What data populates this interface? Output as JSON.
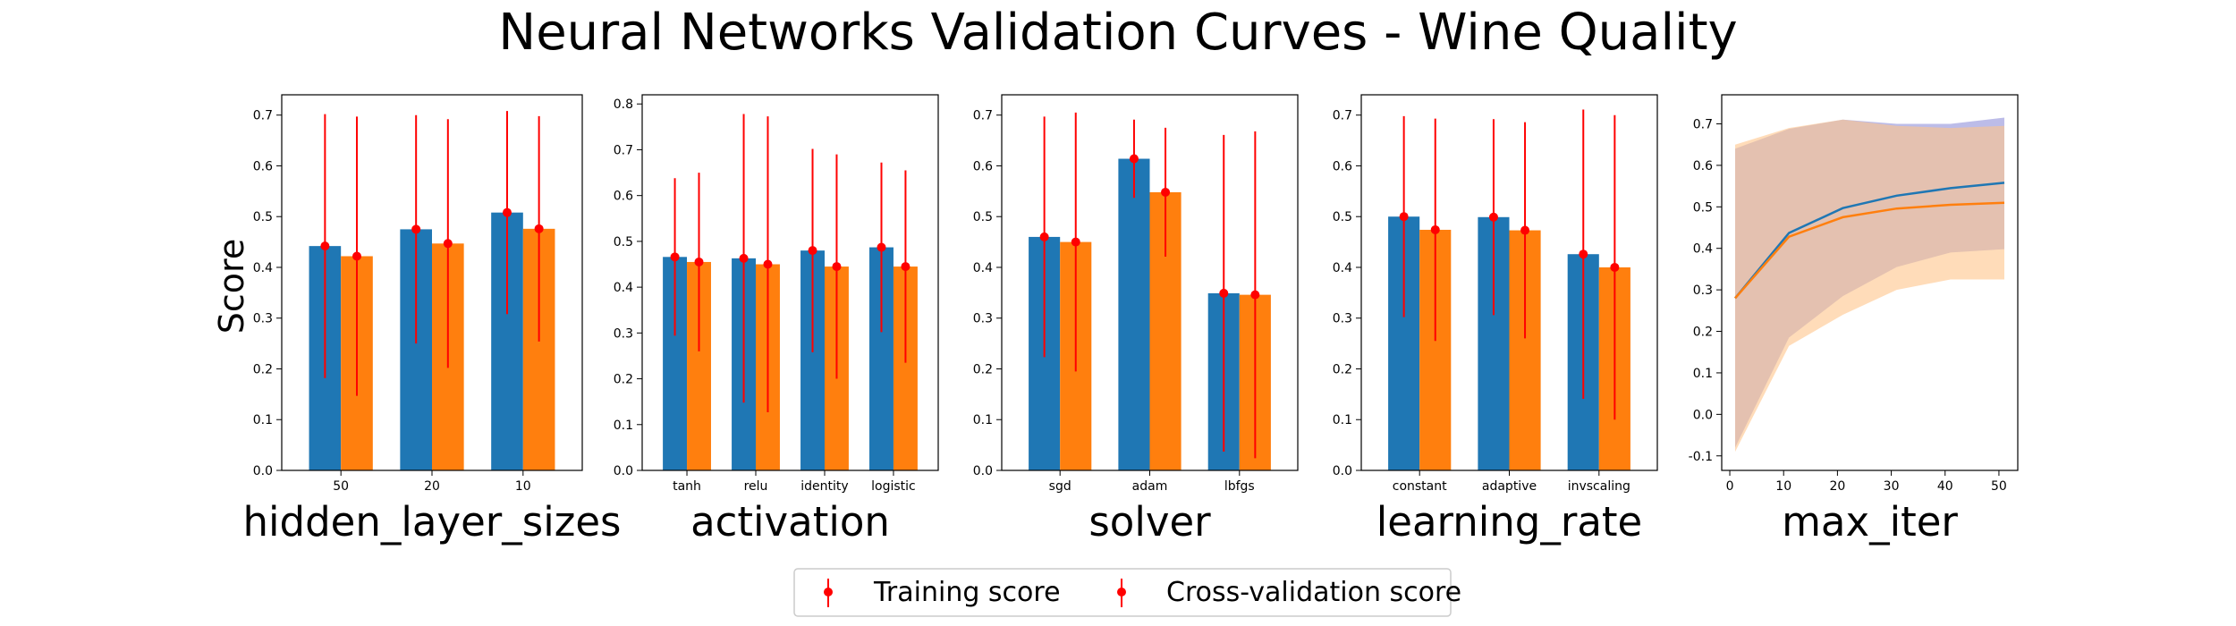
{
  "figure": {
    "title": "Neural Networks Validation Curves - Wine Quality",
    "ylabel": "Score",
    "legend": {
      "training": "Training score",
      "cv": "Cross-validation score",
      "placement": "bottom-center"
    }
  },
  "colors": {
    "train": "#1f77b4",
    "cv": "#ff7f0e",
    "error": "#ff0000",
    "train_band": "#8f8fd9",
    "cv_band": "#ffc48a"
  },
  "chart_data": [
    {
      "type": "bar",
      "xlabel": "hidden_layer_sizes",
      "categories": [
        "50",
        "20",
        "10"
      ],
      "ylim": [
        0,
        0.74
      ],
      "yticks": [
        0.0,
        0.1,
        0.2,
        0.3,
        0.4,
        0.5,
        0.6,
        0.7
      ],
      "series": [
        {
          "name": "Training score",
          "values": [
            0.442,
            0.475,
            0.508
          ],
          "err": [
            0.26,
            0.225,
            0.2
          ]
        },
        {
          "name": "Cross-validation score",
          "values": [
            0.422,
            0.447,
            0.476
          ],
          "err": [
            0.275,
            0.245,
            0.222
          ]
        }
      ]
    },
    {
      "type": "bar",
      "xlabel": "activation",
      "categories": [
        "tanh",
        "relu",
        "identity",
        "logistic"
      ],
      "ylim": [
        0,
        0.82
      ],
      "yticks": [
        0.0,
        0.1,
        0.2,
        0.3,
        0.4,
        0.5,
        0.6,
        0.7,
        0.8
      ],
      "series": [
        {
          "name": "Training score",
          "values": [
            0.466,
            0.463,
            0.48,
            0.487
          ],
          "err": [
            0.172,
            0.315,
            0.222,
            0.185
          ]
        },
        {
          "name": "Cross-validation score",
          "values": [
            0.455,
            0.45,
            0.445,
            0.445
          ],
          "err": [
            0.195,
            0.323,
            0.245,
            0.21
          ]
        }
      ]
    },
    {
      "type": "bar",
      "xlabel": "solver",
      "categories": [
        "sgd",
        "adam",
        "lbfgs"
      ],
      "ylim": [
        0,
        0.74
      ],
      "yticks": [
        0.0,
        0.1,
        0.2,
        0.3,
        0.4,
        0.5,
        0.6,
        0.7
      ],
      "series": [
        {
          "name": "Training score",
          "values": [
            0.46,
            0.614,
            0.349
          ],
          "err": [
            0.237,
            0.077,
            0.312
          ]
        },
        {
          "name": "Cross-validation score",
          "values": [
            0.45,
            0.548,
            0.346
          ],
          "err": [
            0.255,
            0.127,
            0.322
          ]
        }
      ]
    },
    {
      "type": "bar",
      "xlabel": "learning_rate",
      "categories": [
        "constant",
        "adaptive",
        "invscaling"
      ],
      "ylim": [
        0,
        0.74
      ],
      "yticks": [
        0.0,
        0.1,
        0.2,
        0.3,
        0.4,
        0.5,
        0.6,
        0.7
      ],
      "series": [
        {
          "name": "Training score",
          "values": [
            0.5,
            0.499,
            0.426
          ],
          "err": [
            0.198,
            0.193,
            0.285
          ]
        },
        {
          "name": "Cross-validation score",
          "values": [
            0.474,
            0.473,
            0.4
          ],
          "err": [
            0.219,
            0.213,
            0.3
          ]
        }
      ]
    },
    {
      "type": "line",
      "xlabel": "max_iter",
      "xlim": [
        -1.5,
        53.5
      ],
      "ylim": [
        -0.135,
        0.77
      ],
      "xticks": [
        0,
        10,
        20,
        30,
        40,
        50
      ],
      "yticks": [
        -0.1,
        0.0,
        0.1,
        0.2,
        0.3,
        0.4,
        0.5,
        0.6,
        0.7
      ],
      "x": [
        1,
        11,
        21,
        31,
        41,
        51
      ],
      "series": [
        {
          "name": "Training score",
          "values": [
            0.28,
            0.437,
            0.497,
            0.527,
            0.545,
            0.558
          ],
          "lower": [
            -0.08,
            0.185,
            0.285,
            0.355,
            0.39,
            0.398
          ],
          "upper": [
            0.64,
            0.688,
            0.71,
            0.7,
            0.7,
            0.715
          ]
        },
        {
          "name": "Cross-validation score",
          "values": [
            0.28,
            0.428,
            0.475,
            0.496,
            0.505,
            0.51
          ],
          "lower": [
            -0.09,
            0.165,
            0.24,
            0.3,
            0.325,
            0.325
          ],
          "upper": [
            0.65,
            0.69,
            0.71,
            0.695,
            0.69,
            0.695
          ]
        }
      ]
    }
  ]
}
